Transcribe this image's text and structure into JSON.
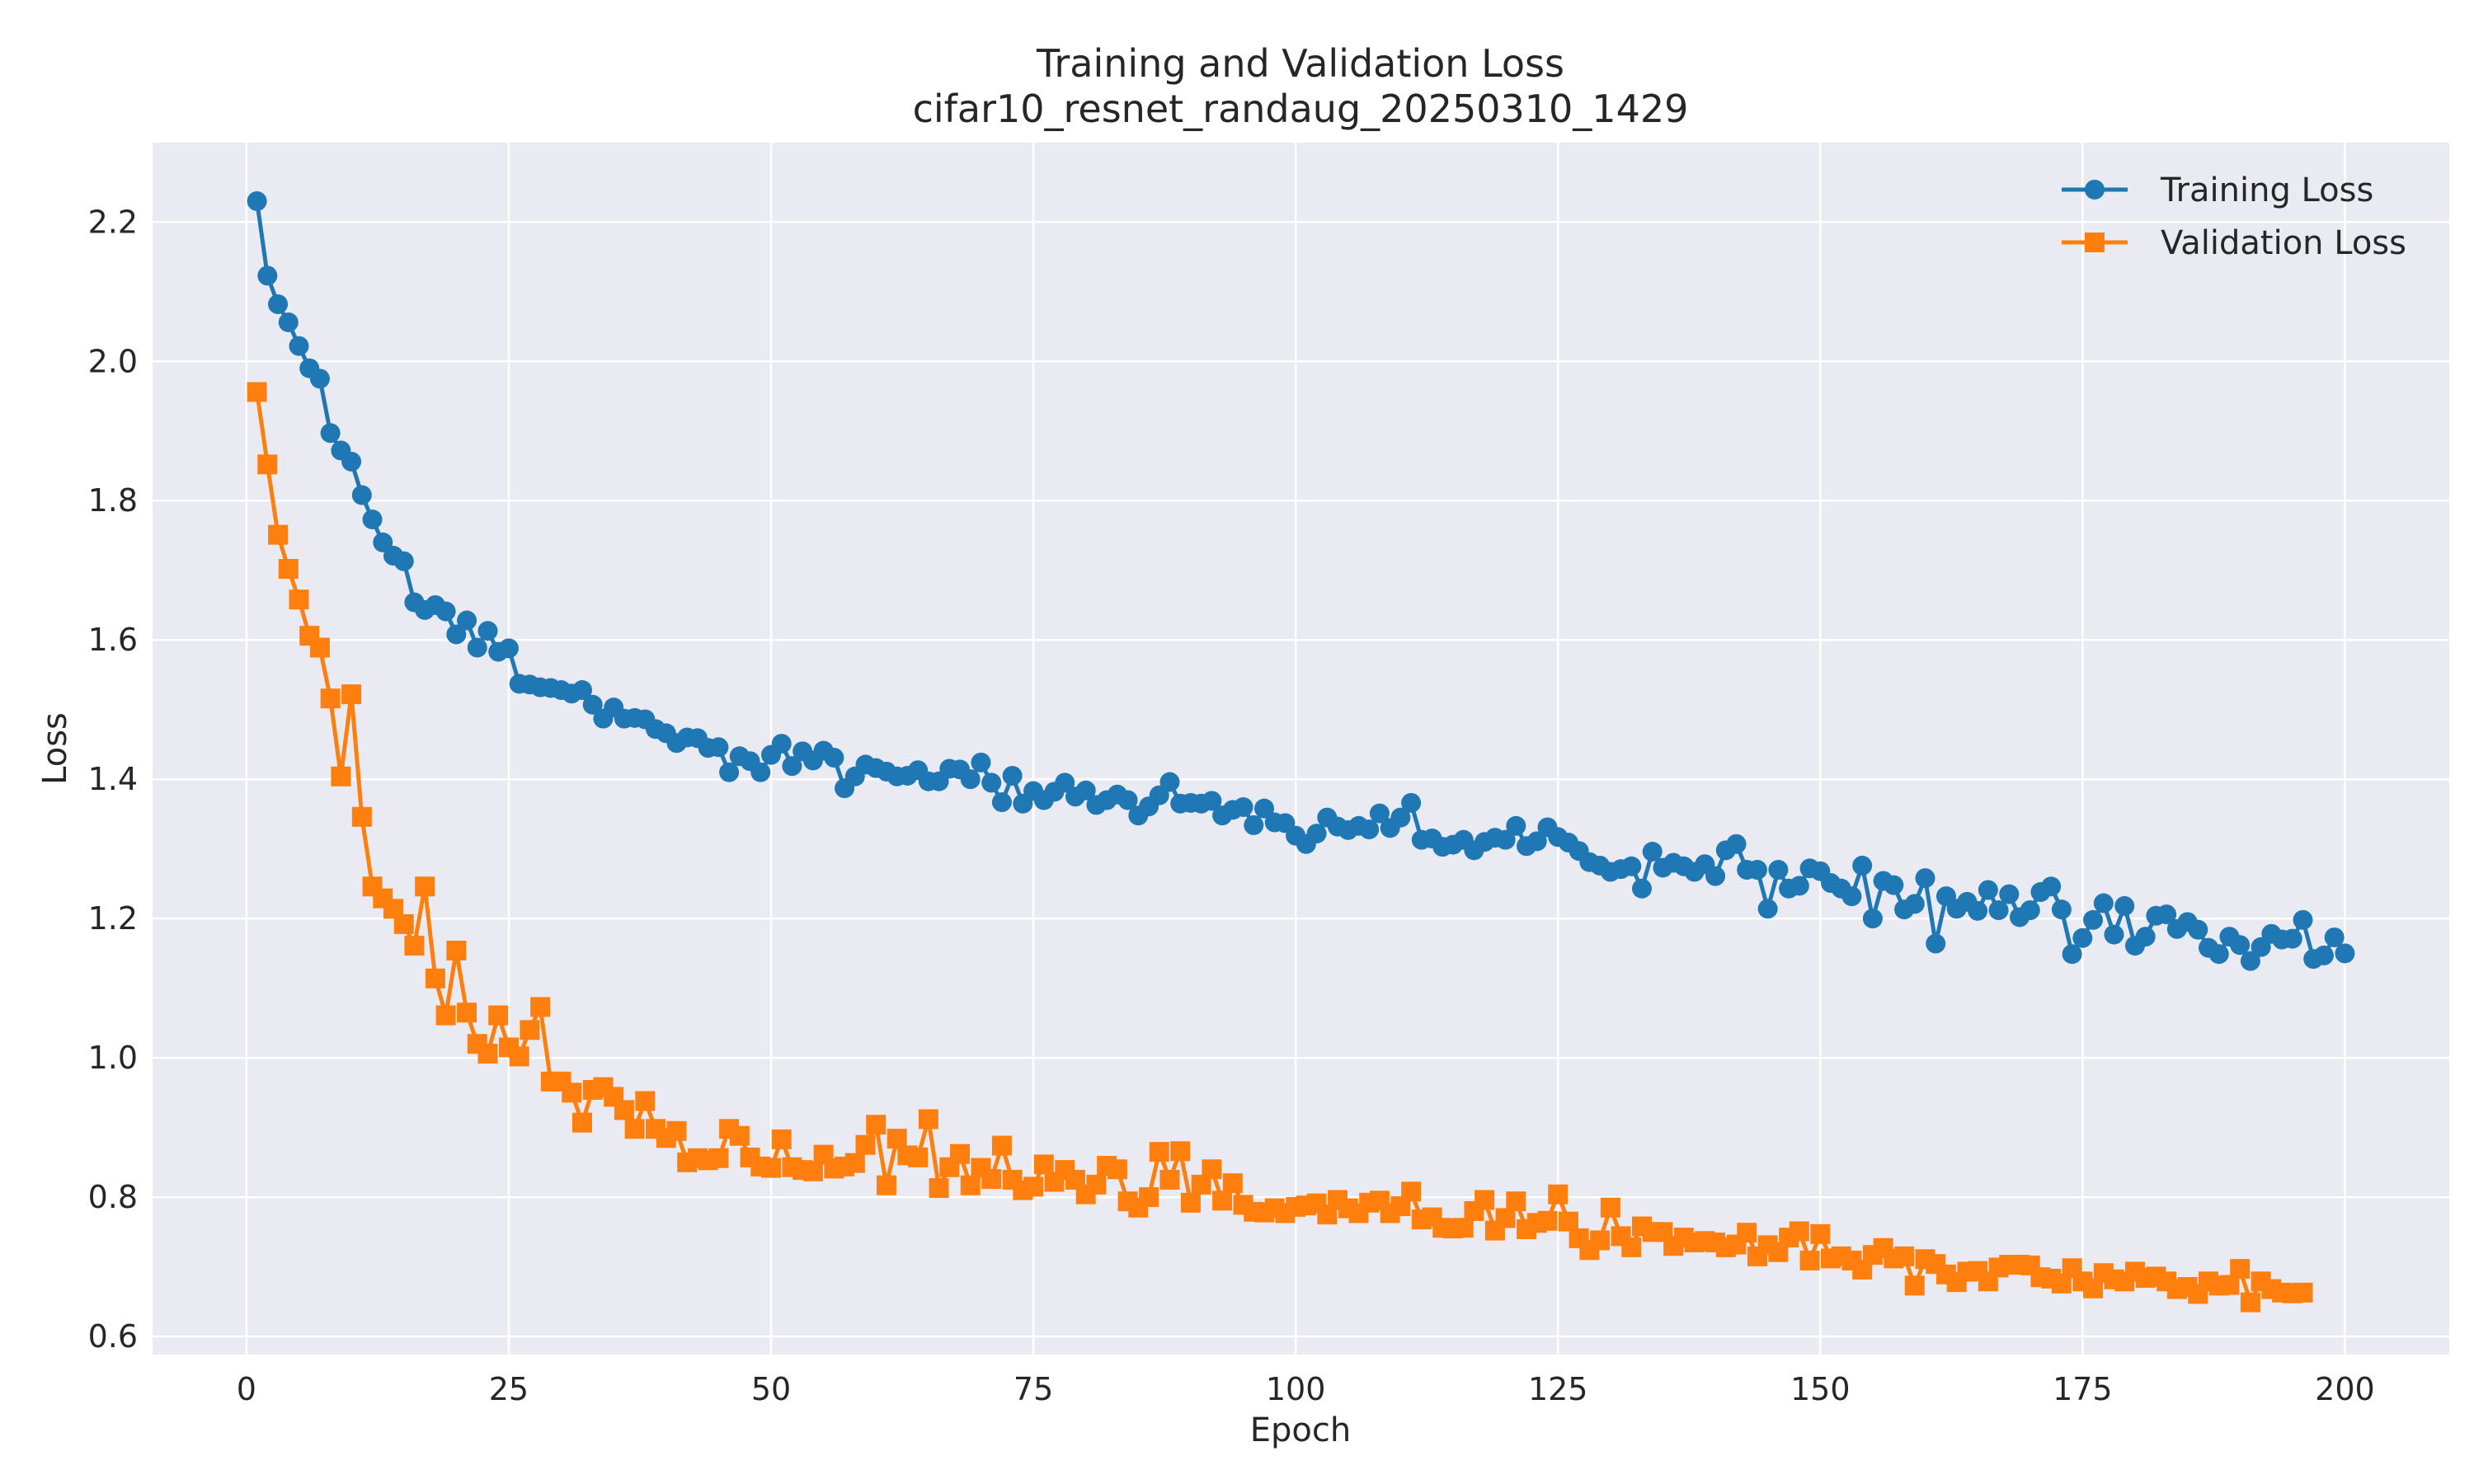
{
  "chart_data": {
    "type": "line",
    "title": "Training and Validation Loss",
    "subtitle": "cifar10_resnet_randaug_20250310_1429",
    "xlabel": "Epoch",
    "ylabel": "Loss",
    "xlim": [
      -8.95,
      209.95
    ],
    "ylim": [
      0.574,
      2.314
    ],
    "xticks": [
      0,
      25,
      50,
      75,
      100,
      125,
      150,
      175,
      200
    ],
    "yticks": [
      0.6,
      0.8,
      1.0,
      1.2,
      1.4,
      1.6,
      1.8,
      2.0,
      2.2
    ],
    "grid": true,
    "legend_position": "top-right",
    "background_color": "#eaeaf2",
    "series": [
      {
        "name": "Training Loss",
        "color": "#1f77b4",
        "marker": "circle",
        "x_start": 1,
        "x_step": 1,
        "values": [
          2.23,
          2.123,
          2.082,
          2.056,
          2.022,
          1.99,
          1.975,
          1.897,
          1.872,
          1.856,
          1.808,
          1.773,
          1.74,
          1.721,
          1.713,
          1.654,
          1.643,
          1.65,
          1.641,
          1.608,
          1.628,
          1.589,
          1.613,
          1.583,
          1.588,
          1.537,
          1.536,
          1.532,
          1.531,
          1.528,
          1.523,
          1.528,
          1.507,
          1.487,
          1.503,
          1.487,
          1.488,
          1.486,
          1.472,
          1.466,
          1.452,
          1.46,
          1.459,
          1.445,
          1.446,
          1.41,
          1.433,
          1.426,
          1.41,
          1.435,
          1.451,
          1.419,
          1.44,
          1.427,
          1.441,
          1.431,
          1.387,
          1.404,
          1.421,
          1.416,
          1.411,
          1.404,
          1.405,
          1.413,
          1.397,
          1.397,
          1.415,
          1.414,
          1.4,
          1.424,
          1.395,
          1.367,
          1.405,
          1.365,
          1.383,
          1.37,
          1.382,
          1.395,
          1.375,
          1.384,
          1.363,
          1.37,
          1.378,
          1.37,
          1.348,
          1.361,
          1.377,
          1.396,
          1.365,
          1.366,
          1.365,
          1.369,
          1.348,
          1.356,
          1.36,
          1.334,
          1.358,
          1.338,
          1.337,
          1.319,
          1.307,
          1.322,
          1.345,
          1.332,
          1.327,
          1.333,
          1.328,
          1.351,
          1.33,
          1.345,
          1.366,
          1.313,
          1.315,
          1.303,
          1.306,
          1.313,
          1.298,
          1.31,
          1.316,
          1.313,
          1.333,
          1.304,
          1.311,
          1.331,
          1.317,
          1.309,
          1.297,
          1.281,
          1.276,
          1.267,
          1.271,
          1.275,
          1.243,
          1.296,
          1.273,
          1.28,
          1.275,
          1.267,
          1.278,
          1.261,
          1.298,
          1.307,
          1.27,
          1.27,
          1.214,
          1.27,
          1.243,
          1.247,
          1.272,
          1.268,
          1.251,
          1.243,
          1.232,
          1.276,
          1.2,
          1.254,
          1.248,
          1.213,
          1.221,
          1.258,
          1.164,
          1.232,
          1.214,
          1.224,
          1.211,
          1.241,
          1.212,
          1.235,
          1.202,
          1.212,
          1.238,
          1.246,
          1.213,
          1.149,
          1.172,
          1.198,
          1.222,
          1.177,
          1.218,
          1.161,
          1.174,
          1.204,
          1.206,
          1.185,
          1.195,
          1.184,
          1.158,
          1.149,
          1.174,
          1.162,
          1.139,
          1.159,
          1.178,
          1.17,
          1.171,
          1.198,
          1.142,
          1.147,
          1.173,
          1.15
        ]
      },
      {
        "name": "Validation Loss",
        "color": "#ff7f0e",
        "marker": "square",
        "x_start": 1,
        "x_step": 1,
        "values": [
          1.956,
          1.852,
          1.751,
          1.702,
          1.658,
          1.606,
          1.589,
          1.516,
          1.404,
          1.522,
          1.346,
          1.246,
          1.229,
          1.214,
          1.192,
          1.161,
          1.246,
          1.114,
          1.061,
          1.154,
          1.065,
          1.02,
          1.006,
          1.061,
          1.015,
          1.002,
          1.04,
          1.073,
          0.966,
          0.966,
          0.95,
          0.907,
          0.954,
          0.958,
          0.944,
          0.925,
          0.898,
          0.938,
          0.898,
          0.885,
          0.895,
          0.85,
          0.856,
          0.853,
          0.856,
          0.898,
          0.888,
          0.857,
          0.844,
          0.842,
          0.883,
          0.843,
          0.839,
          0.837,
          0.861,
          0.841,
          0.844,
          0.849,
          0.875,
          0.904,
          0.817,
          0.884,
          0.86,
          0.857,
          0.912,
          0.813,
          0.843,
          0.862,
          0.817,
          0.842,
          0.826,
          0.874,
          0.825,
          0.81,
          0.815,
          0.847,
          0.822,
          0.839,
          0.825,
          0.804,
          0.818,
          0.845,
          0.84,
          0.794,
          0.785,
          0.8,
          0.865,
          0.825,
          0.866,
          0.792,
          0.818,
          0.84,
          0.795,
          0.82,
          0.789,
          0.779,
          0.778,
          0.784,
          0.777,
          0.786,
          0.788,
          0.791,
          0.775,
          0.796,
          0.784,
          0.777,
          0.792,
          0.795,
          0.777,
          0.787,
          0.808,
          0.768,
          0.771,
          0.756,
          0.755,
          0.756,
          0.78,
          0.796,
          0.752,
          0.77,
          0.794,
          0.754,
          0.763,
          0.766,
          0.804,
          0.765,
          0.741,
          0.724,
          0.738,
          0.785,
          0.744,
          0.728,
          0.758,
          0.75,
          0.75,
          0.73,
          0.742,
          0.735,
          0.737,
          0.735,
          0.728,
          0.732,
          0.749,
          0.715,
          0.731,
          0.721,
          0.742,
          0.751,
          0.709,
          0.747,
          0.712,
          0.715,
          0.709,
          0.696,
          0.717,
          0.727,
          0.712,
          0.715,
          0.673,
          0.711,
          0.704,
          0.689,
          0.678,
          0.693,
          0.694,
          0.679,
          0.699,
          0.703,
          0.703,
          0.702,
          0.685,
          0.683,
          0.676,
          0.698,
          0.679,
          0.669,
          0.691,
          0.682,
          0.679,
          0.693,
          0.684,
          0.686,
          0.679,
          0.668,
          0.671,
          0.661,
          0.679,
          0.673,
          0.674,
          0.697,
          0.649,
          0.679,
          0.668,
          0.663,
          0.662,
          0.663
        ]
      }
    ]
  }
}
